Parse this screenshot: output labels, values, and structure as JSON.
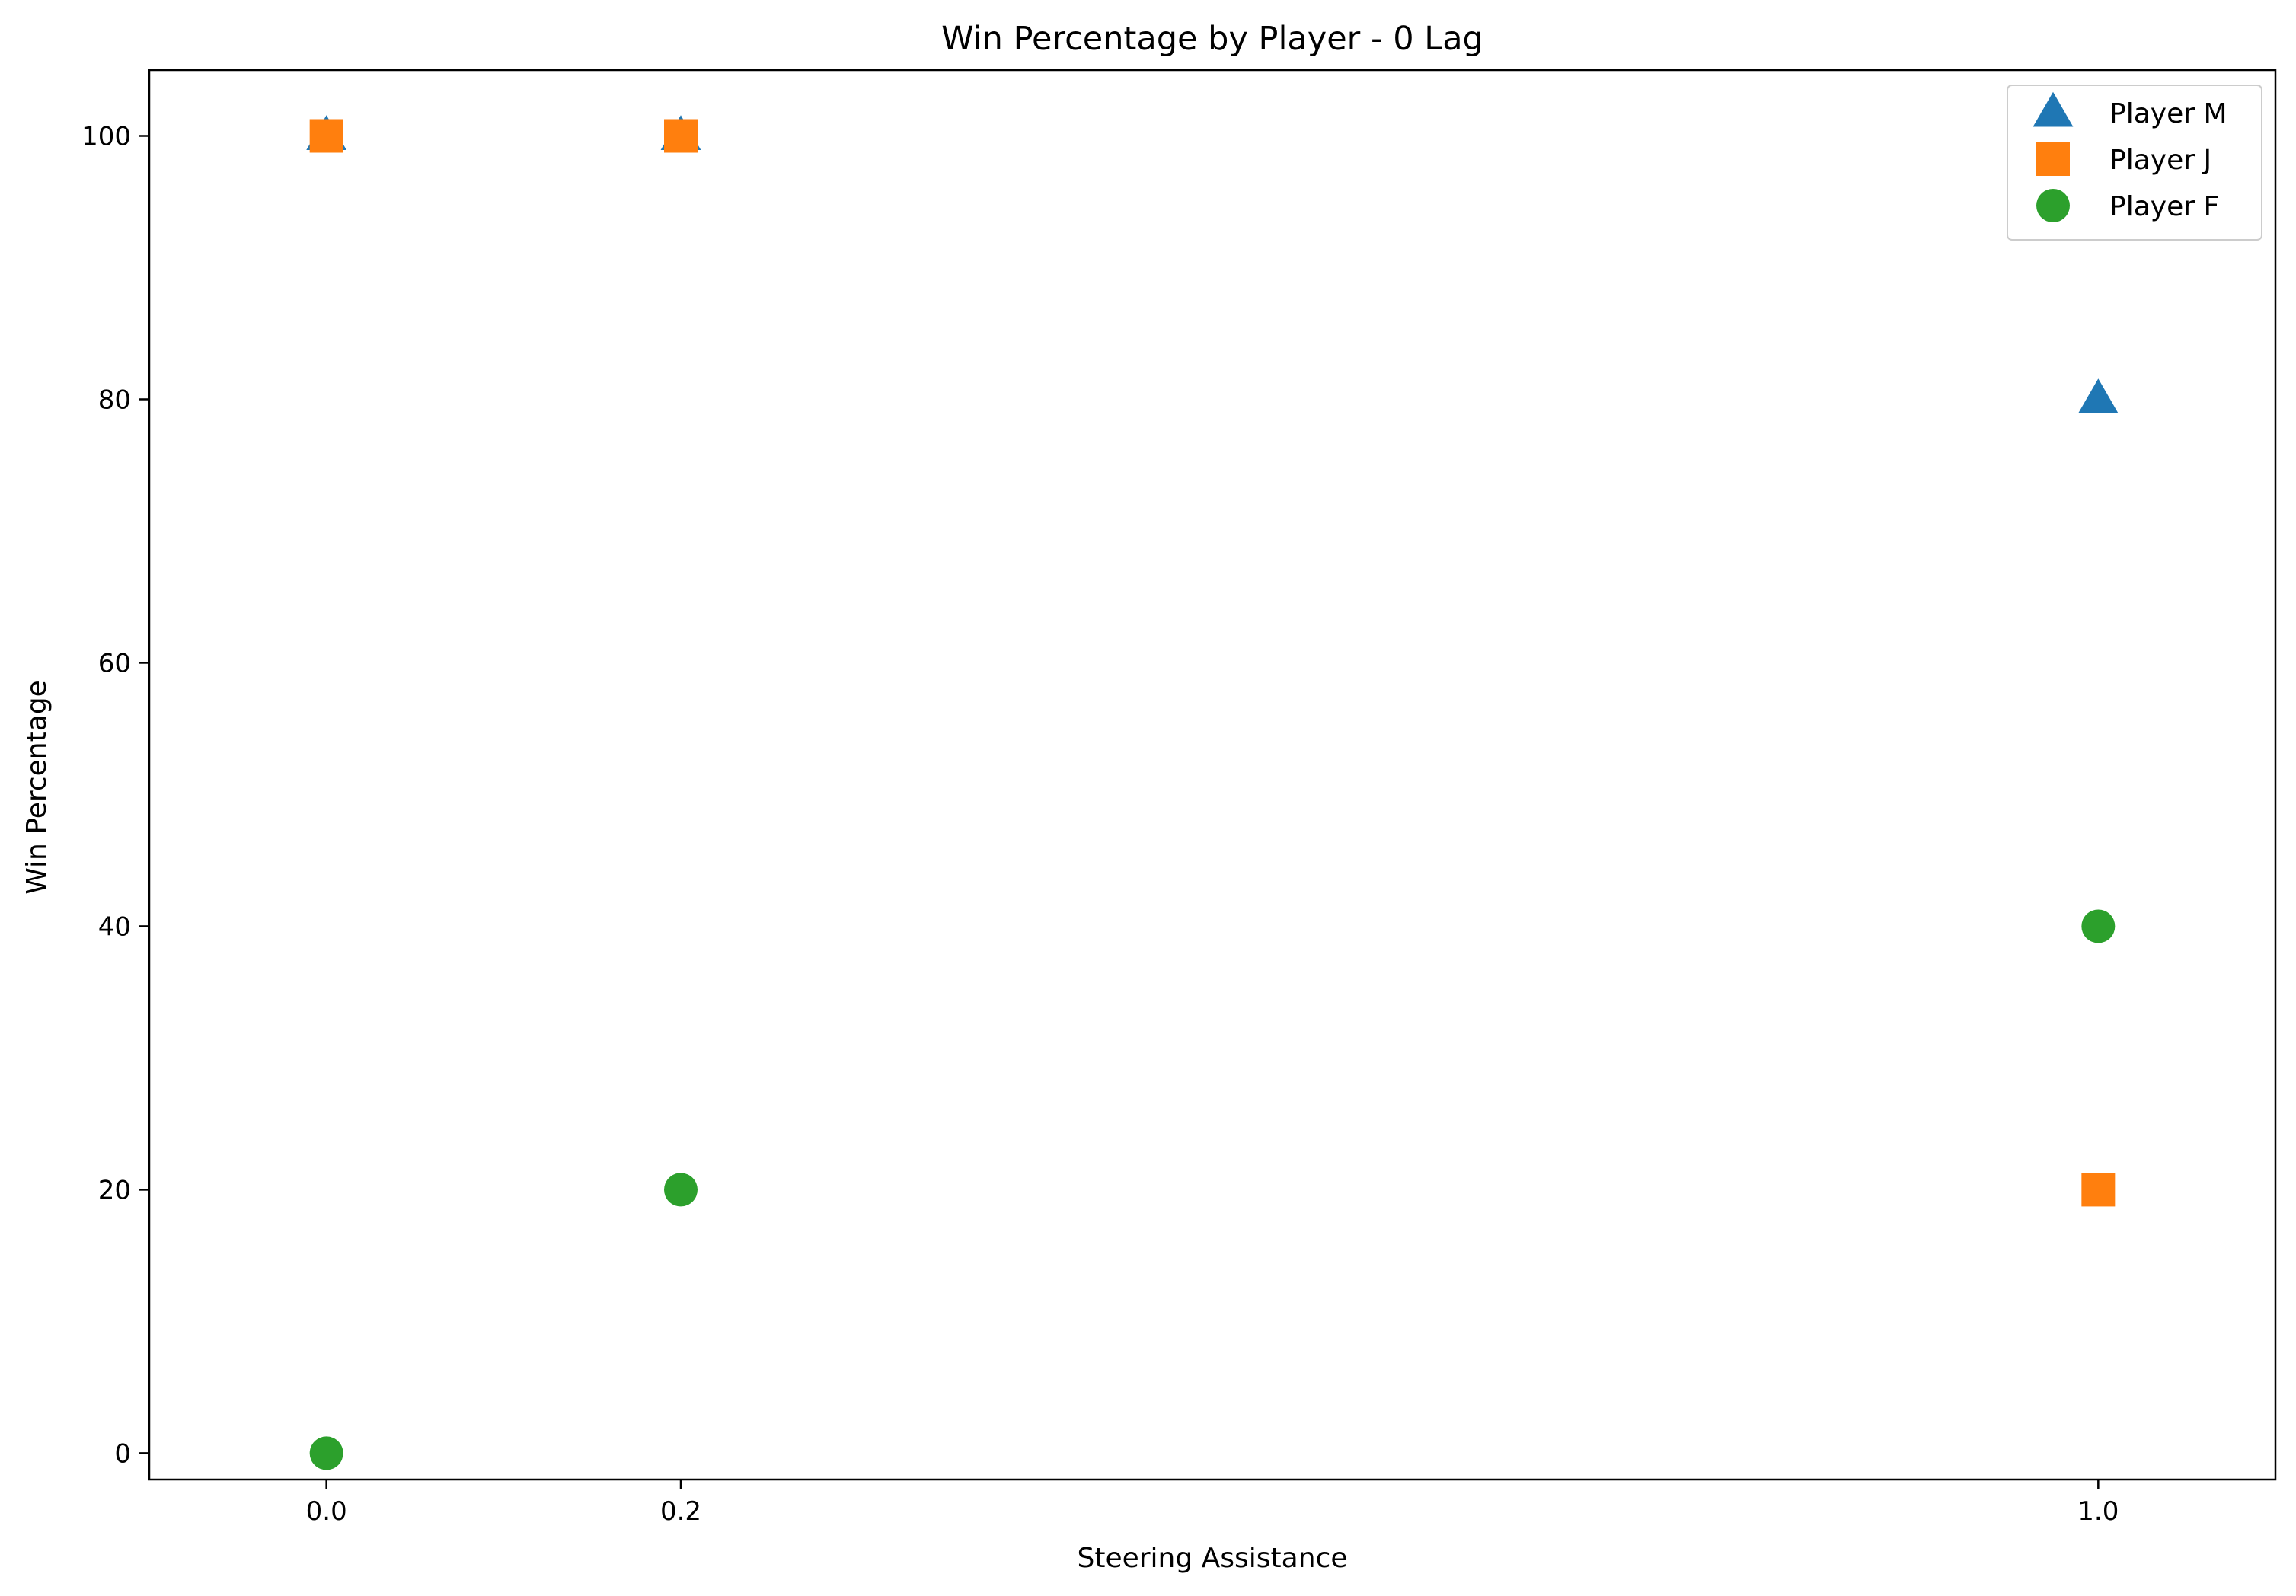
{
  "chart_data": {
    "type": "scatter",
    "title": "Win Percentage by Player - 0 Lag",
    "xlabel": "Steering Assistance",
    "ylabel": "Win Percentage",
    "xlim": [
      -0.1,
      1.1
    ],
    "ylim": [
      -2,
      105
    ],
    "x_ticks": [
      0.0,
      0.2,
      1.0
    ],
    "x_tick_labels": [
      "0.0",
      "0.2",
      "1.0"
    ],
    "y_ticks": [
      0,
      20,
      40,
      60,
      80,
      100
    ],
    "y_tick_labels": [
      "0",
      "20",
      "40",
      "60",
      "80",
      "100"
    ],
    "grid": false,
    "legend_position": "top-right",
    "series": [
      {
        "name": "Player M",
        "marker": "triangle",
        "color": "#1f77b4",
        "x": [
          0.0,
          0.2,
          1.0
        ],
        "y": [
          100,
          100,
          80
        ]
      },
      {
        "name": "Player J",
        "marker": "square",
        "color": "#ff7f0e",
        "x": [
          0.0,
          0.2,
          1.0
        ],
        "y": [
          100,
          100,
          20
        ]
      },
      {
        "name": "Player F",
        "marker": "circle",
        "color": "#2ca02c",
        "x": [
          0.0,
          0.2,
          1.0
        ],
        "y": [
          0,
          20,
          40
        ]
      }
    ]
  }
}
